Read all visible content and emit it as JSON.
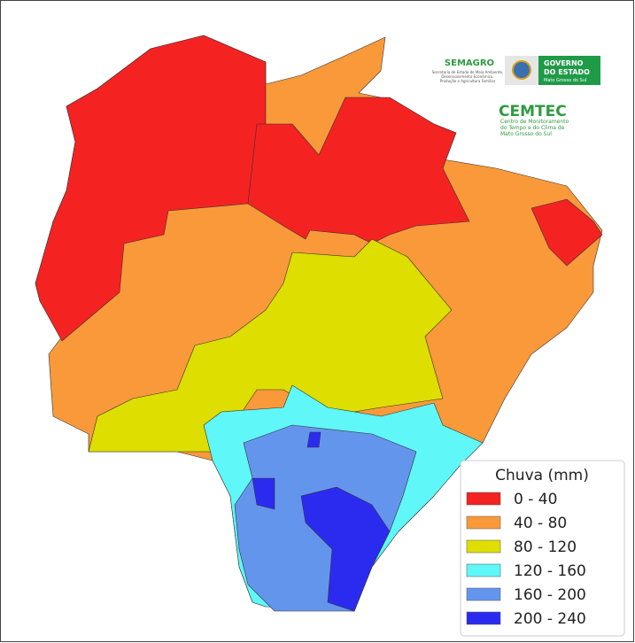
{
  "logos": {
    "semagro": {
      "name": "SEMAGRO",
      "subtitle": [
        "Secretaria de Estado de Meio Ambiente,",
        "Desenvolvimento Econômico,",
        "Produção e Agricultura Familiar"
      ]
    },
    "governo": {
      "lines": [
        "GOVERNO",
        "DO ESTADO"
      ],
      "state": "Mato Grosso do Sul"
    },
    "cemtec": {
      "name": "CEMTEC",
      "subtitle": [
        "Centro de Monitoramento",
        "do Tempo e do Clima de",
        "Mato Grosso do Sul"
      ]
    }
  },
  "legend": {
    "title": "Chuva (mm)",
    "classes": [
      {
        "label": "0 - 40",
        "color": "#f52222"
      },
      {
        "label": "40 - 80",
        "color": "#f9993a"
      },
      {
        "label": "80 - 120",
        "color": "#dede00"
      },
      {
        "label": "120 - 160",
        "color": "#5ff7f7"
      },
      {
        "label": "160 - 200",
        "color": "#6495ed"
      },
      {
        "label": "200 - 240",
        "color": "#2b2bf0"
      }
    ]
  }
}
